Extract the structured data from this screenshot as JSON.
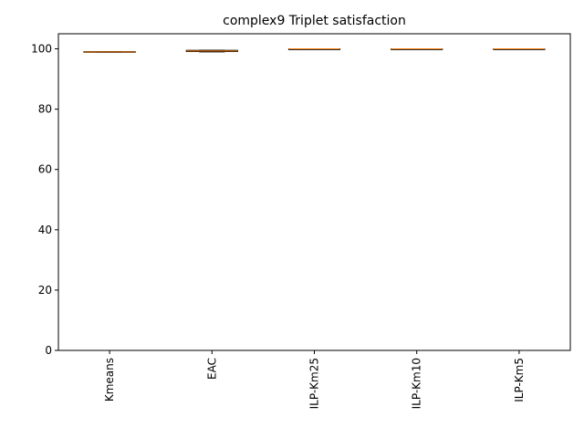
{
  "chart_data": {
    "type": "box",
    "title": "complex9 Triplet satisfaction",
    "xlabel": "",
    "ylabel": "",
    "categories": [
      "Kmeans",
      "EAC",
      "ILP-Km25",
      "ILP-Km10",
      "ILP-Km5"
    ],
    "boxes": [
      {
        "min": 98.9,
        "q1": 98.9,
        "median": 99.0,
        "q3": 99.1,
        "max": 99.1
      },
      {
        "min": 99.0,
        "q1": 99.1,
        "median": 99.3,
        "q3": 99.5,
        "max": 99.5
      },
      {
        "min": 99.9,
        "q1": 99.9,
        "median": 100.0,
        "q3": 100.0,
        "max": 100.0
      },
      {
        "min": 99.9,
        "q1": 99.9,
        "median": 100.0,
        "q3": 100.0,
        "max": 100.0
      },
      {
        "min": 99.9,
        "q1": 99.9,
        "median": 100.0,
        "q3": 100.0,
        "max": 100.0
      }
    ],
    "ylim": [
      0,
      105
    ],
    "yticks": [
      0,
      20,
      40,
      60,
      80,
      100
    ],
    "grid": false,
    "colors": {
      "box": "#000000",
      "median": "#ff7f0e",
      "axis": "#000000"
    }
  }
}
